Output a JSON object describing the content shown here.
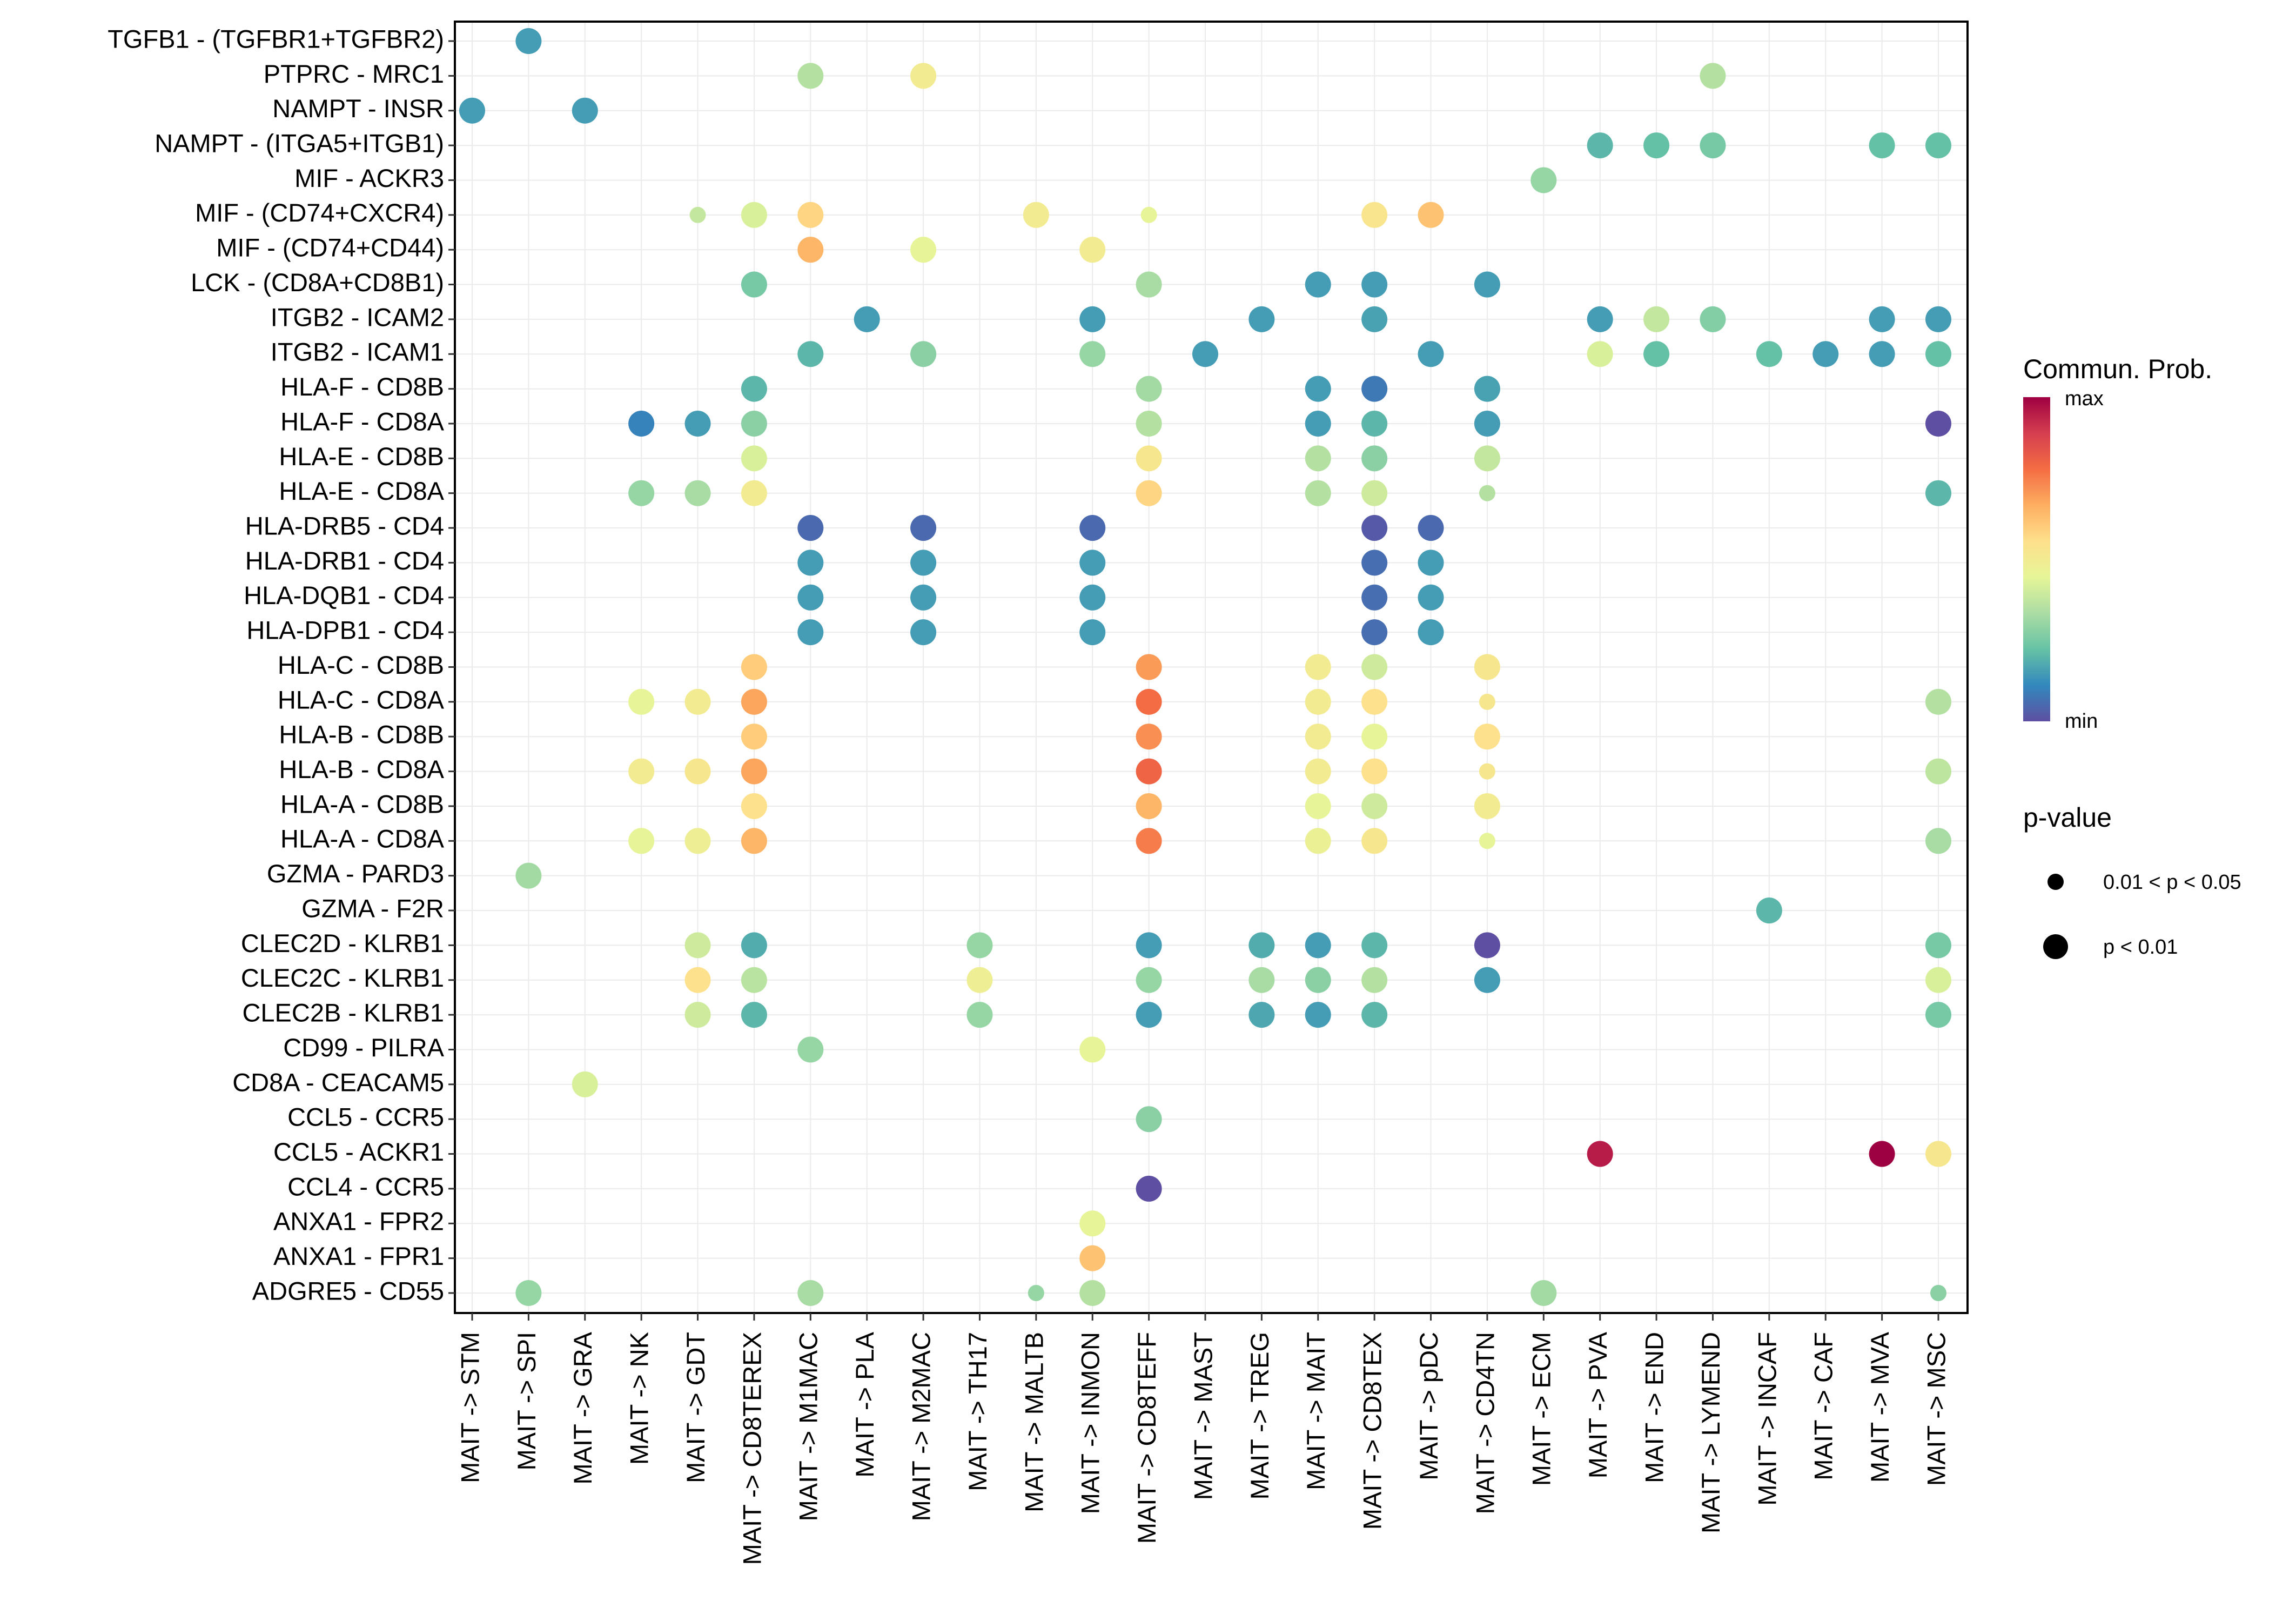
{
  "chart_data": {
    "type": "scatter",
    "subtype": "dot-plot",
    "title": "",
    "xlabel": "",
    "ylabel": "",
    "grid": true,
    "legend_position": "right",
    "x_categories": [
      "MAIT -> STM",
      "MAIT -> SPI",
      "MAIT -> GRA",
      "MAIT -> NK",
      "MAIT -> GDT",
      "MAIT -> CD8TEREX",
      "MAIT -> M1MAC",
      "MAIT -> PLA",
      "MAIT -> M2MAC",
      "MAIT -> TH17",
      "MAIT -> MALTB",
      "MAIT -> INMON",
      "MAIT -> CD8TEFF",
      "MAIT -> MAST",
      "MAIT -> TREG",
      "MAIT -> MAIT",
      "MAIT -> CD8TEX",
      "MAIT -> pDC",
      "MAIT -> CD4TN",
      "MAIT -> ECM",
      "MAIT -> PVA",
      "MAIT -> END",
      "MAIT -> LYMEND",
      "MAIT -> INCAF",
      "MAIT -> CAF",
      "MAIT -> MVA",
      "MAIT -> MSC"
    ],
    "y_categories": [
      "TGFB1 - (TGFBR1+TGFBR2)",
      "PTPRC - MRC1",
      "NAMPT - INSR",
      "NAMPT - (ITGA5+ITGB1)",
      "MIF - ACKR3",
      "MIF - (CD74+CXCR4)",
      "MIF - (CD74+CD44)",
      "LCK - (CD8A+CD8B1)",
      "ITGB2 - ICAM2",
      "ITGB2 - ICAM1",
      "HLA-F - CD8B",
      "HLA-F - CD8A",
      "HLA-E - CD8B",
      "HLA-E - CD8A",
      "HLA-DRB5 - CD4",
      "HLA-DRB1 - CD4",
      "HLA-DQB1 - CD4",
      "HLA-DPB1 - CD4",
      "HLA-C - CD8B",
      "HLA-C - CD8A",
      "HLA-B - CD8B",
      "HLA-B - CD8A",
      "HLA-A - CD8B",
      "HLA-A - CD8A",
      "GZMA - PARD3",
      "GZMA - F2R",
      "CLEC2D - KLRB1",
      "CLEC2C - KLRB1",
      "CLEC2B - KLRB1",
      "CD99 - PILRA",
      "CD8A - CEACAM5",
      "CCL5 - CCR5",
      "CCL5 - ACKR1",
      "CCL4 - CCR5",
      "ANXA1 - FPR2",
      "ANXA1 - FPR1",
      "ADGRE5 - CD55"
    ],
    "point_fields": [
      "x_index",
      "y_index",
      "prob_scaled_0_to_1",
      "pvalue_class"
    ],
    "pvalue_classes": {
      "1": "p < 0.01",
      "0": "0.01 < p < 0.05"
    },
    "points": [
      [
        1,
        0,
        0.15,
        1
      ],
      [
        6,
        1,
        0.35,
        1
      ],
      [
        8,
        1,
        0.5,
        1
      ],
      [
        22,
        1,
        0.35,
        1
      ],
      [
        0,
        2,
        0.15,
        1
      ],
      [
        2,
        2,
        0.15,
        1
      ],
      [
        20,
        3,
        0.2,
        1
      ],
      [
        21,
        3,
        0.22,
        1
      ],
      [
        22,
        3,
        0.25,
        1
      ],
      [
        25,
        3,
        0.22,
        1
      ],
      [
        26,
        3,
        0.22,
        1
      ],
      [
        19,
        4,
        0.3,
        1
      ],
      [
        4,
        5,
        0.38,
        0
      ],
      [
        5,
        5,
        0.42,
        1
      ],
      [
        6,
        5,
        0.58,
        1
      ],
      [
        10,
        5,
        0.5,
        1
      ],
      [
        12,
        5,
        0.45,
        0
      ],
      [
        16,
        5,
        0.53,
        1
      ],
      [
        17,
        5,
        0.62,
        1
      ],
      [
        6,
        6,
        0.65,
        1
      ],
      [
        8,
        6,
        0.45,
        1
      ],
      [
        11,
        6,
        0.5,
        1
      ],
      [
        5,
        7,
        0.25,
        1
      ],
      [
        12,
        7,
        0.33,
        1
      ],
      [
        15,
        7,
        0.15,
        1
      ],
      [
        16,
        7,
        0.15,
        1
      ],
      [
        18,
        7,
        0.15,
        1
      ],
      [
        7,
        8,
        0.15,
        1
      ],
      [
        11,
        8,
        0.15,
        1
      ],
      [
        14,
        8,
        0.15,
        1
      ],
      [
        16,
        8,
        0.16,
        1
      ],
      [
        20,
        8,
        0.15,
        1
      ],
      [
        21,
        8,
        0.38,
        1
      ],
      [
        22,
        8,
        0.27,
        1
      ],
      [
        25,
        8,
        0.15,
        1
      ],
      [
        26,
        8,
        0.15,
        1
      ],
      [
        6,
        9,
        0.2,
        1
      ],
      [
        8,
        9,
        0.28,
        1
      ],
      [
        11,
        9,
        0.3,
        1
      ],
      [
        13,
        9,
        0.15,
        1
      ],
      [
        17,
        9,
        0.15,
        1
      ],
      [
        20,
        9,
        0.42,
        1
      ],
      [
        21,
        9,
        0.22,
        1
      ],
      [
        23,
        9,
        0.22,
        1
      ],
      [
        24,
        9,
        0.15,
        1
      ],
      [
        25,
        9,
        0.15,
        1
      ],
      [
        26,
        9,
        0.22,
        1
      ],
      [
        5,
        10,
        0.2,
        1
      ],
      [
        12,
        10,
        0.32,
        1
      ],
      [
        15,
        10,
        0.15,
        1
      ],
      [
        16,
        10,
        0.08,
        1
      ],
      [
        18,
        10,
        0.16,
        1
      ],
      [
        3,
        11,
        0.1,
        1
      ],
      [
        4,
        11,
        0.15,
        1
      ],
      [
        5,
        11,
        0.28,
        1
      ],
      [
        12,
        11,
        0.35,
        1
      ],
      [
        15,
        11,
        0.15,
        1
      ],
      [
        16,
        11,
        0.2,
        1
      ],
      [
        18,
        11,
        0.15,
        1
      ],
      [
        26,
        11,
        0.0,
        1
      ],
      [
        5,
        12,
        0.42,
        1
      ],
      [
        12,
        12,
        0.52,
        1
      ],
      [
        15,
        12,
        0.35,
        1
      ],
      [
        16,
        12,
        0.28,
        1
      ],
      [
        18,
        12,
        0.38,
        1
      ],
      [
        3,
        13,
        0.3,
        1
      ],
      [
        4,
        13,
        0.33,
        1
      ],
      [
        5,
        13,
        0.5,
        1
      ],
      [
        12,
        13,
        0.58,
        1
      ],
      [
        15,
        13,
        0.35,
        1
      ],
      [
        16,
        13,
        0.4,
        1
      ],
      [
        18,
        13,
        0.35,
        0
      ],
      [
        26,
        13,
        0.2,
        1
      ],
      [
        6,
        14,
        0.05,
        1
      ],
      [
        8,
        14,
        0.05,
        1
      ],
      [
        11,
        14,
        0.05,
        1
      ],
      [
        16,
        14,
        0.02,
        1
      ],
      [
        17,
        14,
        0.05,
        1
      ],
      [
        6,
        15,
        0.15,
        1
      ],
      [
        8,
        15,
        0.15,
        1
      ],
      [
        11,
        15,
        0.15,
        1
      ],
      [
        16,
        15,
        0.06,
        1
      ],
      [
        17,
        15,
        0.15,
        1
      ],
      [
        6,
        16,
        0.15,
        1
      ],
      [
        8,
        16,
        0.15,
        1
      ],
      [
        11,
        16,
        0.15,
        1
      ],
      [
        16,
        16,
        0.06,
        1
      ],
      [
        17,
        16,
        0.15,
        1
      ],
      [
        6,
        17,
        0.15,
        1
      ],
      [
        8,
        17,
        0.15,
        1
      ],
      [
        11,
        17,
        0.15,
        1
      ],
      [
        16,
        17,
        0.06,
        1
      ],
      [
        17,
        17,
        0.15,
        1
      ],
      [
        5,
        18,
        0.6,
        1
      ],
      [
        12,
        18,
        0.7,
        1
      ],
      [
        15,
        18,
        0.5,
        1
      ],
      [
        16,
        18,
        0.4,
        1
      ],
      [
        18,
        18,
        0.52,
        1
      ],
      [
        3,
        19,
        0.45,
        1
      ],
      [
        4,
        19,
        0.5,
        1
      ],
      [
        5,
        19,
        0.68,
        1
      ],
      [
        12,
        19,
        0.78,
        1
      ],
      [
        15,
        19,
        0.5,
        1
      ],
      [
        16,
        19,
        0.55,
        1
      ],
      [
        18,
        19,
        0.52,
        0
      ],
      [
        26,
        19,
        0.35,
        1
      ],
      [
        5,
        20,
        0.6,
        1
      ],
      [
        12,
        20,
        0.72,
        1
      ],
      [
        15,
        20,
        0.5,
        1
      ],
      [
        16,
        20,
        0.45,
        1
      ],
      [
        18,
        20,
        0.55,
        1
      ],
      [
        3,
        21,
        0.5,
        1
      ],
      [
        4,
        21,
        0.52,
        1
      ],
      [
        5,
        21,
        0.68,
        1
      ],
      [
        12,
        21,
        0.8,
        1
      ],
      [
        15,
        21,
        0.5,
        1
      ],
      [
        16,
        21,
        0.55,
        1
      ],
      [
        18,
        21,
        0.52,
        0
      ],
      [
        26,
        21,
        0.37,
        1
      ],
      [
        5,
        22,
        0.55,
        1
      ],
      [
        12,
        22,
        0.65,
        1
      ],
      [
        15,
        22,
        0.45,
        1
      ],
      [
        16,
        22,
        0.4,
        1
      ],
      [
        18,
        22,
        0.5,
        1
      ],
      [
        3,
        23,
        0.45,
        1
      ],
      [
        4,
        23,
        0.48,
        1
      ],
      [
        5,
        23,
        0.65,
        1
      ],
      [
        12,
        23,
        0.75,
        1
      ],
      [
        15,
        23,
        0.47,
        1
      ],
      [
        16,
        23,
        0.52,
        1
      ],
      [
        18,
        23,
        0.45,
        0
      ],
      [
        26,
        23,
        0.33,
        1
      ],
      [
        1,
        24,
        0.32,
        1
      ],
      [
        23,
        25,
        0.2,
        1
      ],
      [
        4,
        26,
        0.4,
        1
      ],
      [
        5,
        26,
        0.18,
        1
      ],
      [
        9,
        26,
        0.3,
        1
      ],
      [
        12,
        26,
        0.15,
        1
      ],
      [
        14,
        26,
        0.18,
        1
      ],
      [
        15,
        26,
        0.15,
        1
      ],
      [
        16,
        26,
        0.2,
        1
      ],
      [
        18,
        26,
        0.0,
        1
      ],
      [
        26,
        26,
        0.25,
        1
      ],
      [
        4,
        27,
        0.55,
        1
      ],
      [
        5,
        27,
        0.36,
        1
      ],
      [
        9,
        27,
        0.48,
        1
      ],
      [
        12,
        27,
        0.3,
        1
      ],
      [
        14,
        27,
        0.33,
        1
      ],
      [
        15,
        27,
        0.28,
        1
      ],
      [
        16,
        27,
        0.35,
        1
      ],
      [
        18,
        27,
        0.15,
        1
      ],
      [
        26,
        27,
        0.42,
        1
      ],
      [
        4,
        28,
        0.4,
        1
      ],
      [
        5,
        28,
        0.2,
        1
      ],
      [
        9,
        28,
        0.3,
        1
      ],
      [
        12,
        28,
        0.15,
        1
      ],
      [
        14,
        28,
        0.17,
        1
      ],
      [
        15,
        28,
        0.15,
        1
      ],
      [
        16,
        28,
        0.2,
        1
      ],
      [
        26,
        28,
        0.25,
        1
      ],
      [
        6,
        29,
        0.3,
        1
      ],
      [
        11,
        29,
        0.45,
        1
      ],
      [
        2,
        30,
        0.42,
        1
      ],
      [
        12,
        31,
        0.28,
        1
      ],
      [
        20,
        32,
        0.95,
        1
      ],
      [
        25,
        32,
        1.0,
        1
      ],
      [
        26,
        32,
        0.52,
        1
      ],
      [
        12,
        33,
        0.0,
        1
      ],
      [
        11,
        34,
        0.45,
        1
      ],
      [
        11,
        35,
        0.62,
        1
      ],
      [
        1,
        36,
        0.3,
        1
      ],
      [
        6,
        36,
        0.33,
        1
      ],
      [
        10,
        36,
        0.3,
        0
      ],
      [
        11,
        36,
        0.35,
        1
      ],
      [
        19,
        36,
        0.32,
        1
      ],
      [
        26,
        36,
        0.28,
        0
      ]
    ],
    "color_legend": {
      "title": "Commun. Prob.",
      "max_label": "max",
      "min_label": "min",
      "palette": [
        "#5E4FA2",
        "#3288BD",
        "#66C2A5",
        "#ABDDA4",
        "#E6F598",
        "#FEE08B",
        "#FDAE61",
        "#F46D43",
        "#D53E4F",
        "#9E0142"
      ]
    },
    "size_legend": {
      "title": "p-value",
      "items": [
        {
          "label": "0.01 < p < 0.05"
        },
        {
          "label": "p < 0.01"
        }
      ]
    }
  }
}
